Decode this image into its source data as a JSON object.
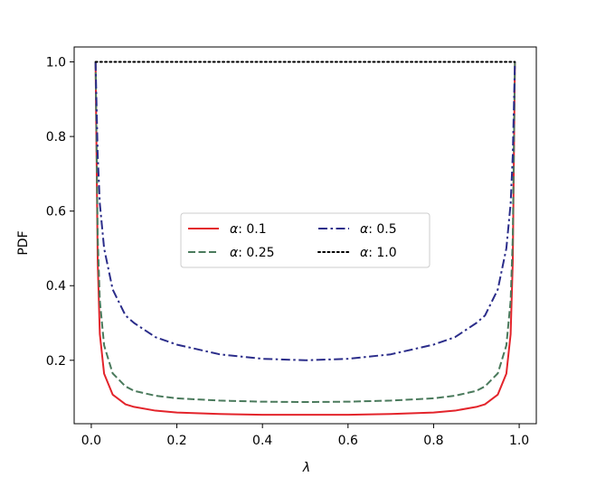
{
  "chart_data": {
    "type": "line",
    "title": "",
    "xlabel": "λ",
    "ylabel": "PDF",
    "xlim": [
      -0.04,
      1.04
    ],
    "ylim": [
      0.03,
      1.04
    ],
    "xticks": [
      0.0,
      0.2,
      0.4,
      0.6,
      0.8,
      1.0
    ],
    "xtick_labels": [
      "0.0",
      "0.2",
      "0.4",
      "0.6",
      "0.8",
      "1.0"
    ],
    "yticks": [
      0.2,
      0.4,
      0.6,
      0.8,
      1.0
    ],
    "ytick_labels": [
      "0.2",
      "0.4",
      "0.6",
      "0.8",
      "1.0"
    ],
    "grid": false,
    "legend_placement": "center",
    "legend_columns": 2,
    "series": [
      {
        "name": "α: 0.1",
        "legend_prefix": "α",
        "legend_value": ": 0.1",
        "color": "#e3242b",
        "style": "solid",
        "x": [
          0.01,
          0.015,
          0.02,
          0.03,
          0.05,
          0.08,
          0.1,
          0.15,
          0.2,
          0.3,
          0.4,
          0.5,
          0.6,
          0.7,
          0.8,
          0.85,
          0.9,
          0.92,
          0.95,
          0.97,
          0.98,
          0.985,
          0.99
        ],
        "y": [
          1.0,
          0.465,
          0.27,
          0.164,
          0.108,
          0.082,
          0.075,
          0.065,
          0.06,
          0.056,
          0.054,
          0.054,
          0.054,
          0.056,
          0.06,
          0.065,
          0.075,
          0.082,
          0.108,
          0.164,
          0.27,
          0.465,
          1.0
        ]
      },
      {
        "name": "α: 0.25",
        "legend_prefix": "α",
        "legend_value": ": 0.25",
        "color": "#4a7a5c",
        "style": "dashed",
        "x": [
          0.01,
          0.015,
          0.02,
          0.03,
          0.05,
          0.08,
          0.1,
          0.15,
          0.2,
          0.3,
          0.4,
          0.5,
          0.6,
          0.7,
          0.8,
          0.85,
          0.9,
          0.92,
          0.95,
          0.97,
          0.98,
          0.985,
          0.99
        ],
        "y": [
          1.0,
          0.53,
          0.36,
          0.24,
          0.165,
          0.13,
          0.118,
          0.105,
          0.098,
          0.092,
          0.089,
          0.088,
          0.089,
          0.092,
          0.098,
          0.105,
          0.118,
          0.13,
          0.165,
          0.24,
          0.36,
          0.53,
          1.0
        ]
      },
      {
        "name": "α: 0.5",
        "legend_prefix": "α",
        "legend_value": ": 0.5",
        "color": "#2b2d8a",
        "style": "dashdot",
        "x": [
          0.01,
          0.015,
          0.02,
          0.03,
          0.05,
          0.08,
          0.1,
          0.15,
          0.2,
          0.3,
          0.4,
          0.5,
          0.6,
          0.7,
          0.8,
          0.85,
          0.9,
          0.92,
          0.95,
          0.97,
          0.98,
          0.985,
          0.99
        ],
        "y": [
          1.0,
          0.75,
          0.62,
          0.5,
          0.39,
          0.32,
          0.3,
          0.262,
          0.242,
          0.216,
          0.204,
          0.2,
          0.204,
          0.216,
          0.242,
          0.262,
          0.3,
          0.32,
          0.39,
          0.5,
          0.62,
          0.75,
          1.0
        ]
      },
      {
        "name": "α: 1.0",
        "legend_prefix": "α",
        "legend_value": ": 1.0",
        "color": "#000000",
        "style": "dotted",
        "x": [
          0.01,
          0.99
        ],
        "y": [
          1.0,
          1.0
        ]
      }
    ]
  }
}
